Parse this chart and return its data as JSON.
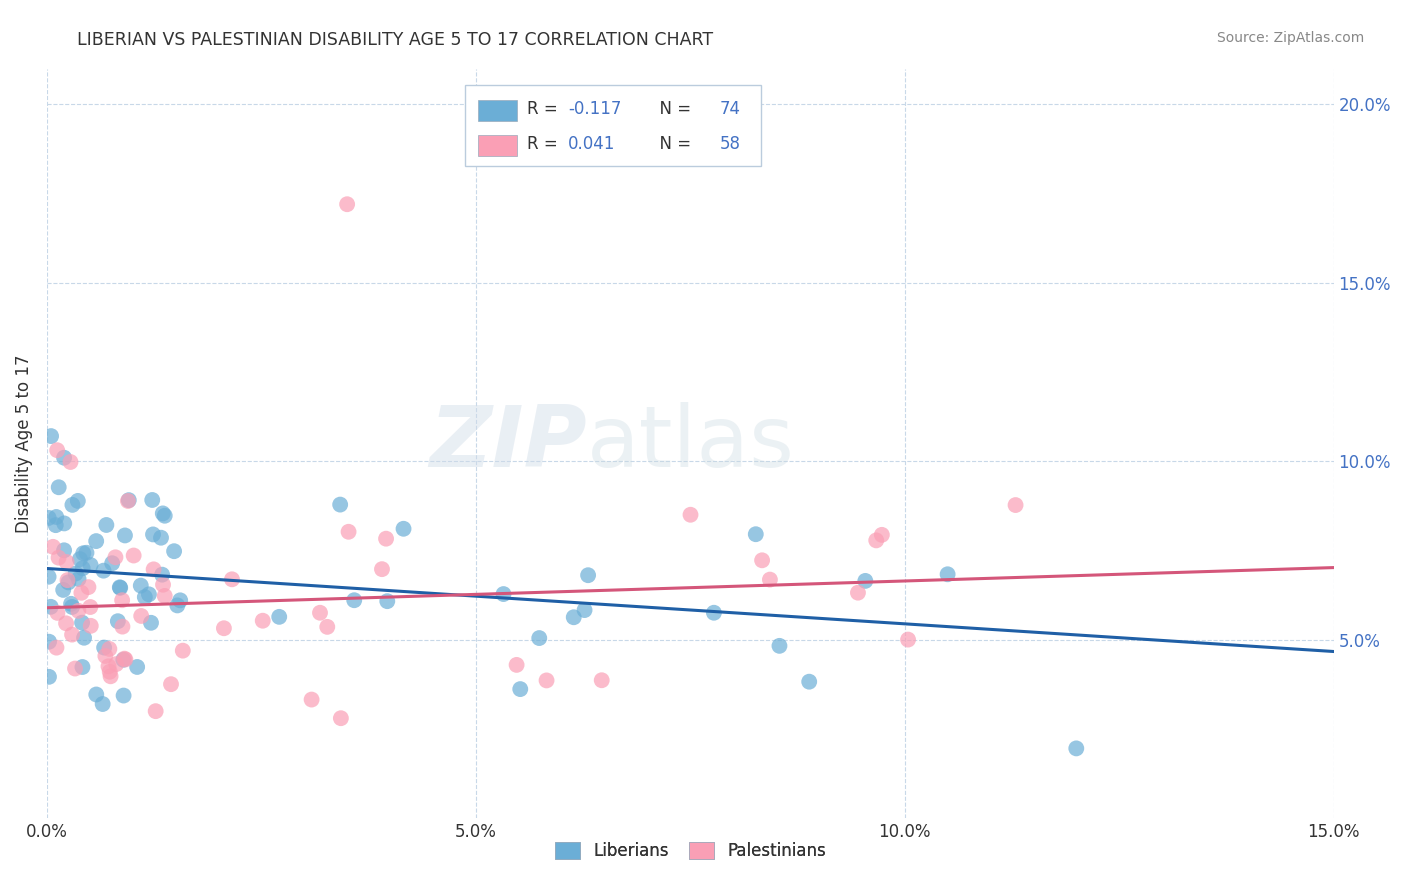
{
  "title": "LIBERIAN VS PALESTINIAN DISABILITY AGE 5 TO 17 CORRELATION CHART",
  "source_text": "Source: ZipAtlas.com",
  "ylabel": "Disability Age 5 to 17",
  "xlim": [
    0.0,
    0.15
  ],
  "ylim": [
    0.0,
    0.21
  ],
  "xtick_labels": [
    "0.0%",
    "5.0%",
    "10.0%",
    "15.0%"
  ],
  "xtick_vals": [
    0.0,
    0.05,
    0.1,
    0.15
  ],
  "ytick_labels_right": [
    "5.0%",
    "10.0%",
    "15.0%",
    "20.0%"
  ],
  "ytick_vals_right": [
    0.05,
    0.1,
    0.15,
    0.2
  ],
  "blue_color": "#6baed6",
  "pink_color": "#fa9fb5",
  "blue_line_color": "#1f5fa6",
  "pink_line_color": "#d4567a",
  "legend_R_blue": "-0.117",
  "legend_N_blue": "74",
  "legend_R_pink": "0.041",
  "legend_N_pink": "58",
  "legend_label_blue": "Liberians",
  "legend_label_pink": "Palestinians",
  "watermark": "ZIPatlas",
  "blue_intercept": 0.07,
  "blue_slope": -0.155,
  "pink_intercept": 0.059,
  "pink_slope": 0.075,
  "background_color": "#ffffff",
  "grid_color": "#c8d8e8",
  "title_color": "#333333",
  "axis_label_color": "#333333",
  "right_axis_color": "#4472c4",
  "source_color": "#888888",
  "num_color": "#4472c4",
  "label_color": "#333333"
}
